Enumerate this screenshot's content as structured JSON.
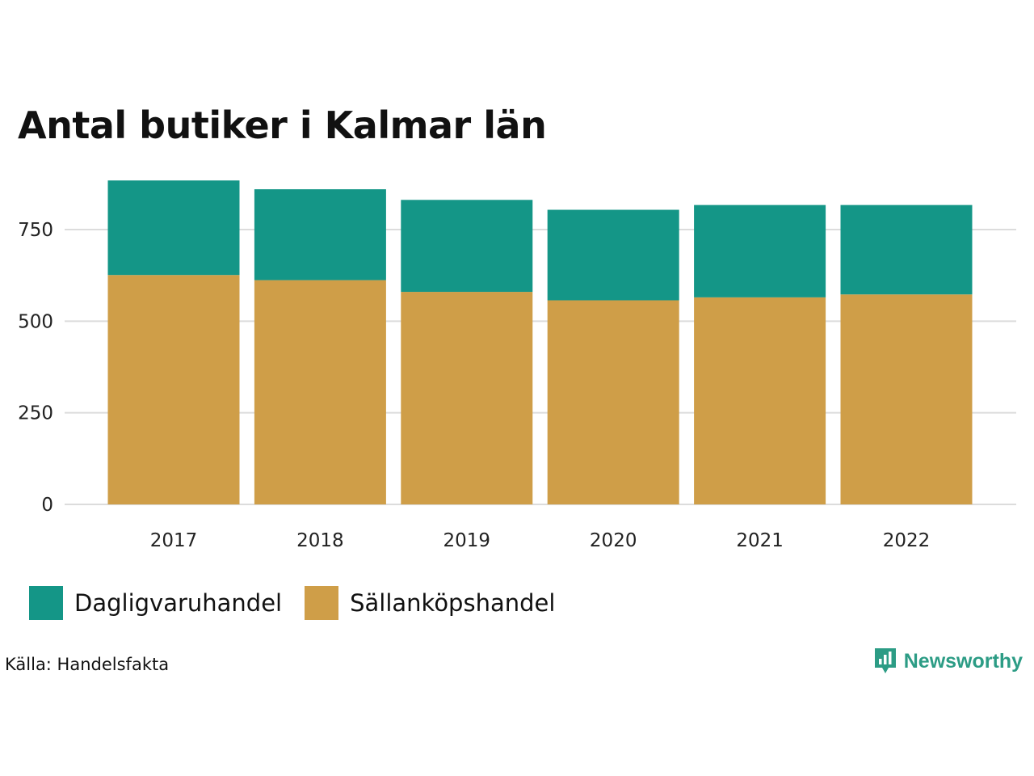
{
  "chart_data": {
    "type": "bar",
    "stacked": true,
    "title": "Antal butiker i Kalmar län",
    "categories": [
      "2017",
      "2018",
      "2019",
      "2020",
      "2021",
      "2022"
    ],
    "series": [
      {
        "name": "Sällanköpshandel",
        "color": "#cf9e48",
        "values": [
          626,
          612,
          580,
          557,
          565,
          573
        ]
      },
      {
        "name": "Dagligvaruhandel",
        "color": "#149687",
        "values": [
          258,
          248,
          251,
          247,
          252,
          244
        ]
      }
    ],
    "yticks": [
      0,
      250,
      500,
      750
    ],
    "ylim": [
      0,
      900
    ],
    "grid": true,
    "legend_position": "bottom-left"
  },
  "legend": {
    "items": [
      {
        "label": "Dagligvaruhandel",
        "color": "#149687"
      },
      {
        "label": "Sällanköpshandel",
        "color": "#cf9e48"
      }
    ]
  },
  "footer": {
    "source": "Källa: Handelsfakta",
    "brand": "Newsworthy",
    "brand_icon": "bar-chart-speech-bubble-icon",
    "brand_color": "#2c9c85"
  }
}
